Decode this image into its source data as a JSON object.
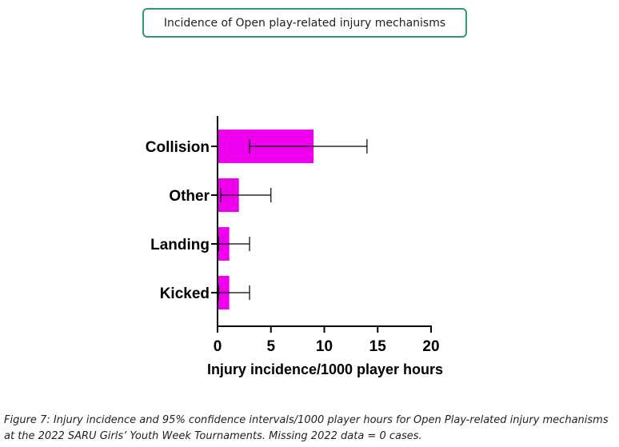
{
  "chart_data": {
    "type": "bar",
    "orientation": "horizontal",
    "title": "Incidence of Open play-related injury mechanisms",
    "xlabel": "Injury incidence/1000 player hours",
    "ylabel": "",
    "xlim": [
      0,
      20
    ],
    "xticks": [
      0,
      5,
      10,
      15,
      20
    ],
    "categories": [
      "Collision",
      "Other",
      "Landing",
      "Kicked"
    ],
    "values": [
      9,
      2,
      1.1,
      1.1
    ],
    "ci_lower": [
      3,
      0.3,
      0.1,
      0.1
    ],
    "ci_upper": [
      14,
      5,
      3,
      3
    ],
    "bar_color": "#ee00ee",
    "grid": false
  },
  "caption": "Figure 7: Injury incidence and 95% confidence intervals/1000 player hours for Open Play-related injury mechanisms at the 2022 SARU Girls’ Youth Week Tournaments. Missing 2022 data = 0 cases."
}
